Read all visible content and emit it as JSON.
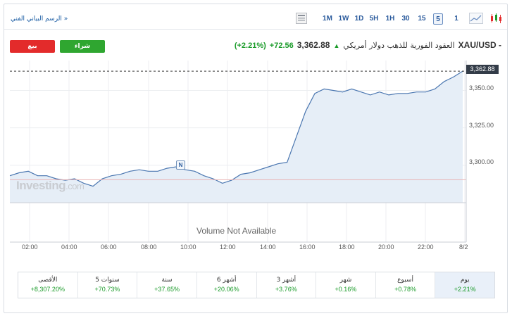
{
  "toolbar": {
    "technical_chart_link": "الرسم البياني الفني »",
    "timeframes": [
      "1M",
      "1W",
      "1D",
      "5H",
      "1H",
      "30",
      "15",
      "5",
      "1"
    ],
    "active_timeframe": "5"
  },
  "buttons": {
    "sell": "بيع",
    "buy": "شراء"
  },
  "instrument": {
    "symbol": "XAU/USD -",
    "name": "العقود الفورية للذهب دولار أمريكي",
    "price": "3,362.88",
    "change": "+72.56",
    "change_pct": "(+2.21%)"
  },
  "chart": {
    "current_price_label": "3,362.88",
    "y_labels": [
      "3,350.00",
      "3,325.00",
      "3,300.00"
    ],
    "x_labels": [
      "02:00",
      "04:00",
      "06:00",
      "08:00",
      "10:00",
      "12:00",
      "14:00",
      "16:00",
      "18:00",
      "20:00",
      "22:00",
      "8/2"
    ],
    "volume_text": "Volume Not Available",
    "watermark_main": "Investing",
    "watermark_suffix": ".com",
    "news_marker": "N",
    "colors": {
      "line": "#4a76b0",
      "fill": "#e6eef7",
      "up": "#1a9b29",
      "down": "#e32b2b"
    }
  },
  "chart_data": {
    "type": "area",
    "x": [
      "00:00",
      "00:30",
      "01:00",
      "01:30",
      "02:00",
      "02:30",
      "03:00",
      "03:30",
      "04:00",
      "04:30",
      "05:00",
      "05:30",
      "06:00",
      "06:30",
      "07:00",
      "07:30",
      "08:00",
      "08:30",
      "09:00",
      "09:30",
      "10:00",
      "10:30",
      "11:00",
      "11:30",
      "12:00",
      "12:30",
      "13:00",
      "13:30",
      "14:00",
      "14:30",
      "15:00",
      "15:15",
      "15:30",
      "16:00",
      "16:30",
      "17:00",
      "17:30",
      "18:00",
      "18:30",
      "19:00",
      "19:30",
      "20:00",
      "20:30",
      "21:00",
      "21:30",
      "22:00",
      "22:30",
      "23:00",
      "23:30",
      "8/2"
    ],
    "y": [
      3293,
      3295,
      3296,
      3293,
      3293,
      3291,
      3290,
      3291,
      3288,
      3286,
      3291,
      3293,
      3294,
      3296,
      3297,
      3296,
      3296,
      3298,
      3299,
      3297,
      3296,
      3293,
      3291,
      3288,
      3290,
      3294,
      3295,
      3297,
      3299,
      3301,
      3302,
      3319,
      3336,
      3348,
      3351,
      3350,
      3349,
      3351,
      3349,
      3347,
      3349,
      3347,
      3348,
      3348,
      3349,
      3349,
      3351,
      3356,
      3359,
      3362.88
    ],
    "ylim": [
      3275,
      3370
    ],
    "previous_close": 3290.32,
    "grid": true
  },
  "performance": [
    {
      "label": "يوم",
      "value": "+2.21%"
    },
    {
      "label": "أسبوع",
      "value": "+0.78%"
    },
    {
      "label": "شهر",
      "value": "+0.16%"
    },
    {
      "label": "3 أشهر",
      "value": "+3.76%"
    },
    {
      "label": "6 أشهر",
      "value": "+20.06%"
    },
    {
      "label": "سنة",
      "value": "+37.65%"
    },
    {
      "label": "5 سنوات",
      "value": "+70.73%"
    },
    {
      "label": "الأقصى",
      "value": "+8,307.20%"
    }
  ]
}
